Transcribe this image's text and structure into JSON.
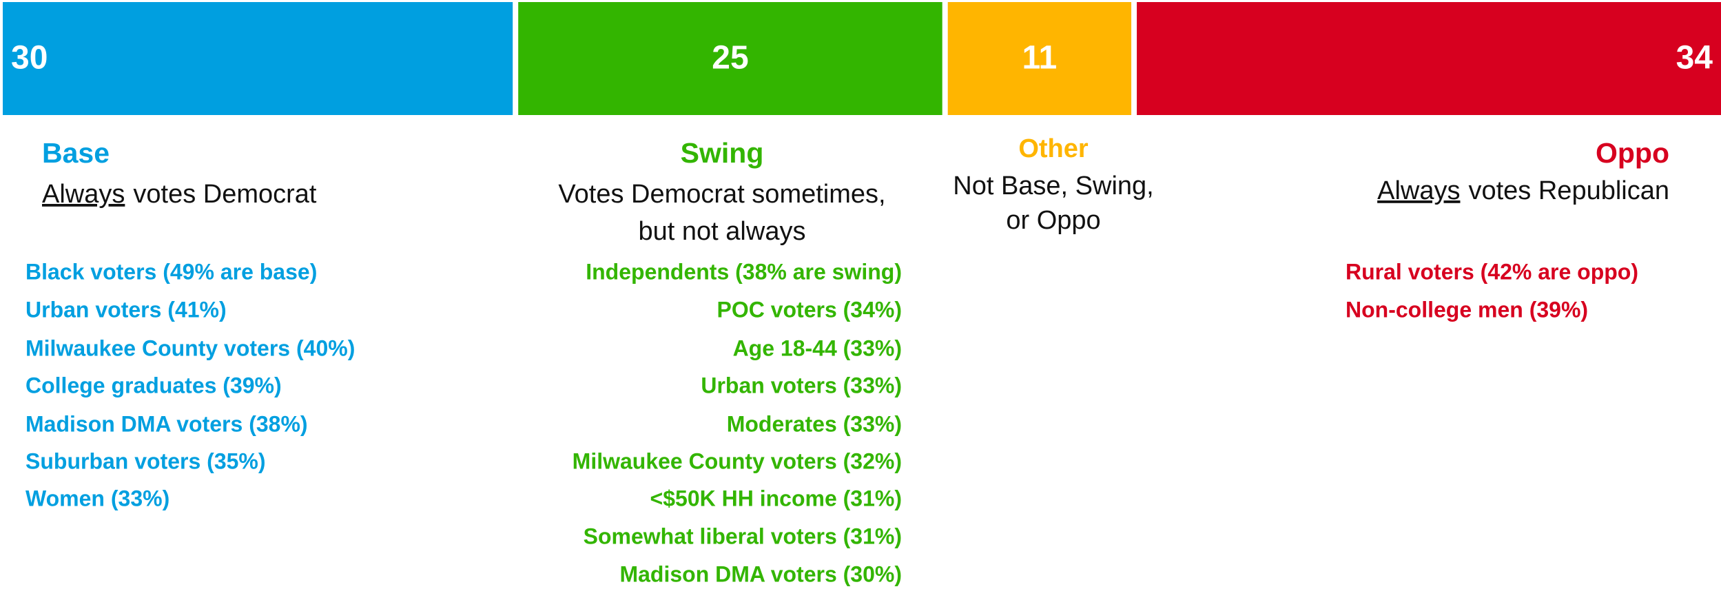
{
  "chart_data": {
    "type": "stacked-bar",
    "xlim": [
      0,
      100
    ],
    "series": [
      {
        "name": "Base",
        "color": "#009fe0",
        "values": [
          30
        ],
        "description": {
          "underlined": "Always",
          "lines": [
            "votes Democrat"
          ]
        },
        "items": [
          "Black voters (49% are base)",
          "Urban voters (41%)",
          "Milwaukee County voters (40%)",
          "College graduates (39%)",
          "Madison DMA voters (38%)",
          "Suburban voters (35%)",
          "Women (33%)"
        ]
      },
      {
        "name": "Swing",
        "color": "#33b500",
        "values": [
          25
        ],
        "description": {
          "lines": [
            "Votes Democrat sometimes,",
            "but not always"
          ]
        },
        "items": [
          "Independents (38% are swing)",
          "POC voters (34%)",
          "Age 18-44 (33%)",
          "Urban voters (33%)",
          "Moderates (33%)",
          "Milwaukee County voters (32%)",
          "<$50K HH income (31%)",
          "Somewhat liberal voters (31%)",
          "Madison DMA voters (30%)"
        ]
      },
      {
        "name": "Other",
        "color": "#ffb500",
        "values": [
          11
        ],
        "description": {
          "lines": [
            "Not Base, Swing,",
            "or Oppo"
          ]
        },
        "items": []
      },
      {
        "name": "Oppo",
        "color": "#d7001f",
        "values": [
          34
        ],
        "description": {
          "underlined": "Always",
          "lines": [
            "votes Republican"
          ]
        },
        "items": [
          "Rural voters (42%  are oppo)",
          "Non-college men (39%)"
        ]
      }
    ]
  }
}
